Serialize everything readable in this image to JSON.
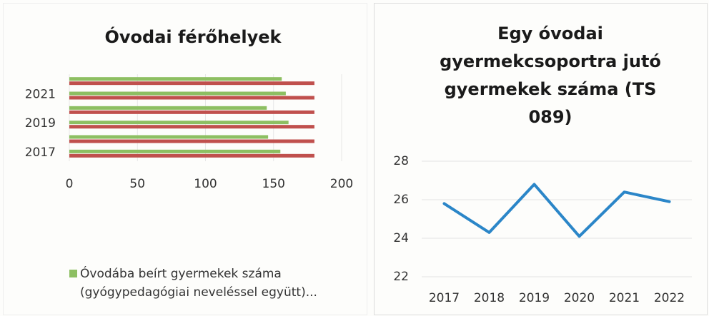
{
  "chart_data": [
    {
      "type": "hbar",
      "title": "Óvodai férőhelyek",
      "categories": [
        "2017",
        null,
        "2019",
        null,
        "2021",
        null
      ],
      "series": [
        {
          "name": "Óvodába beírt gyermekek száma (gyógypedagógiai neveléssel együtt)...",
          "color": "#8dbf62",
          "values": [
            155,
            146,
            161,
            145,
            159,
            156
          ]
        },
        {
          "color": "#c0504d",
          "values": [
            180,
            180,
            180,
            180,
            180,
            180
          ]
        }
      ],
      "xlim": [
        0,
        200
      ],
      "xticks": [
        0,
        50,
        100,
        150,
        200
      ],
      "grid": true,
      "legend": "bottom"
    },
    {
      "type": "line",
      "title": "Egy óvodai gyermekcsoportra jutó gyermekek száma (TS 089)",
      "categories": [
        "2017",
        "2018",
        "2019",
        "2020",
        "2021",
        "2022"
      ],
      "values": [
        25.8,
        24.3,
        26.8,
        24.1,
        26.4,
        25.9
      ],
      "color": "#2b86c8",
      "ylim": [
        22,
        28
      ],
      "yticks": [
        22,
        24,
        26,
        28
      ],
      "grid": true
    }
  ]
}
